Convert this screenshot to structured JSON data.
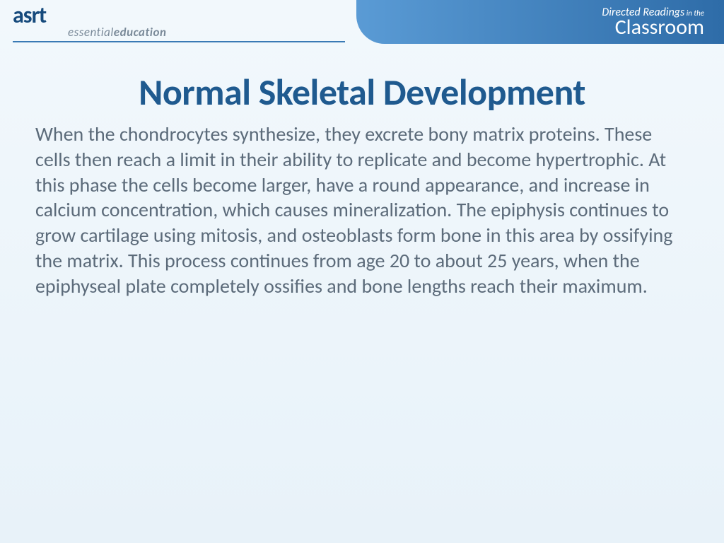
{
  "colors": {
    "background_gradient_top": "#f2f8fc",
    "background_gradient_bottom": "#e8f2f9",
    "banner_gradient_left": "#5a9bd5",
    "banner_gradient_right": "#2e6ca8",
    "title_color": "#1f5a8f",
    "body_color": "#5c6b7a",
    "logo_color": "#164a7c",
    "tagline_color": "#7a8a99",
    "line_color": "#3a7ab5",
    "banner_text": "#ffffff"
  },
  "logo": {
    "text": "asrt",
    "tagline_light": "essential",
    "tagline_bold": "education"
  },
  "banner": {
    "line1_main": "Directed Readings",
    "line1_suffix": " in the",
    "line2": "Classroom"
  },
  "slide": {
    "title": "Normal Skeletal Development",
    "body": "When the chondrocytes synthesize, they excrete bony matrix proteins. These cells then reach a limit in their ability to replicate and become hypertrophic. At this phase the cells become larger, have a round appearance, and increase in calcium concentration, which causes mineralization. The epiphysis continues to grow cartilage using mitosis, and osteoblasts form bone in this area by ossifying the matrix. This process continues from age 20 to about 25 years, when the epiphyseal plate completely ossifies and bone lengths reach their maximum."
  },
  "typography": {
    "title_fontsize": 52,
    "body_fontsize": 28
  }
}
